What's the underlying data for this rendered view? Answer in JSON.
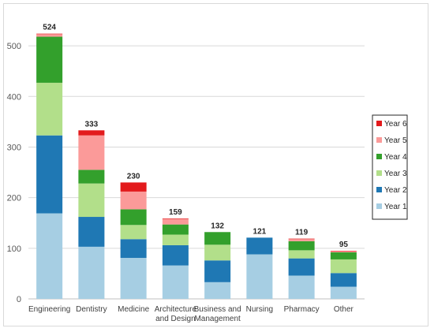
{
  "chart_data": {
    "type": "bar",
    "stacked": true,
    "title": "",
    "xlabel": "",
    "ylabel": "",
    "ylim": [
      0,
      550
    ],
    "yticks": [
      0,
      100,
      200,
      300,
      400,
      500
    ],
    "grid": true,
    "legend_position": "right",
    "categories": [
      [
        "Engineering"
      ],
      [
        "Dentistry"
      ],
      [
        "Medicine"
      ],
      [
        "Architecture",
        "and Design"
      ],
      [
        "Business and",
        "Management"
      ],
      [
        "Nursing"
      ],
      [
        "Pharmacy"
      ],
      [
        "Other"
      ]
    ],
    "totals": [
      524,
      333,
      230,
      159,
      132,
      121,
      119,
      95
    ],
    "series": [
      {
        "name": "Year 1",
        "color": "#a6cee3",
        "values": [
          169,
          103,
          81,
          66,
          33,
          88,
          46,
          24
        ]
      },
      {
        "name": "Year 2",
        "color": "#1f78b4",
        "values": [
          154,
          59,
          37,
          40,
          43,
          33,
          34,
          27
        ]
      },
      {
        "name": "Year 3",
        "color": "#b2df8a",
        "values": [
          104,
          66,
          28,
          21,
          31,
          0,
          16,
          27
        ]
      },
      {
        "name": "Year 4",
        "color": "#33a02c",
        "values": [
          91,
          27,
          31,
          20,
          25,
          0,
          18,
          14
        ]
      },
      {
        "name": "Year 5",
        "color": "#fb9a99",
        "values": [
          5,
          68,
          35,
          11,
          0,
          0,
          4,
          2
        ]
      },
      {
        "name": "Year 6",
        "color": "#e31a1c",
        "values": [
          1,
          10,
          18,
          1,
          0,
          0,
          1,
          1
        ]
      }
    ]
  }
}
